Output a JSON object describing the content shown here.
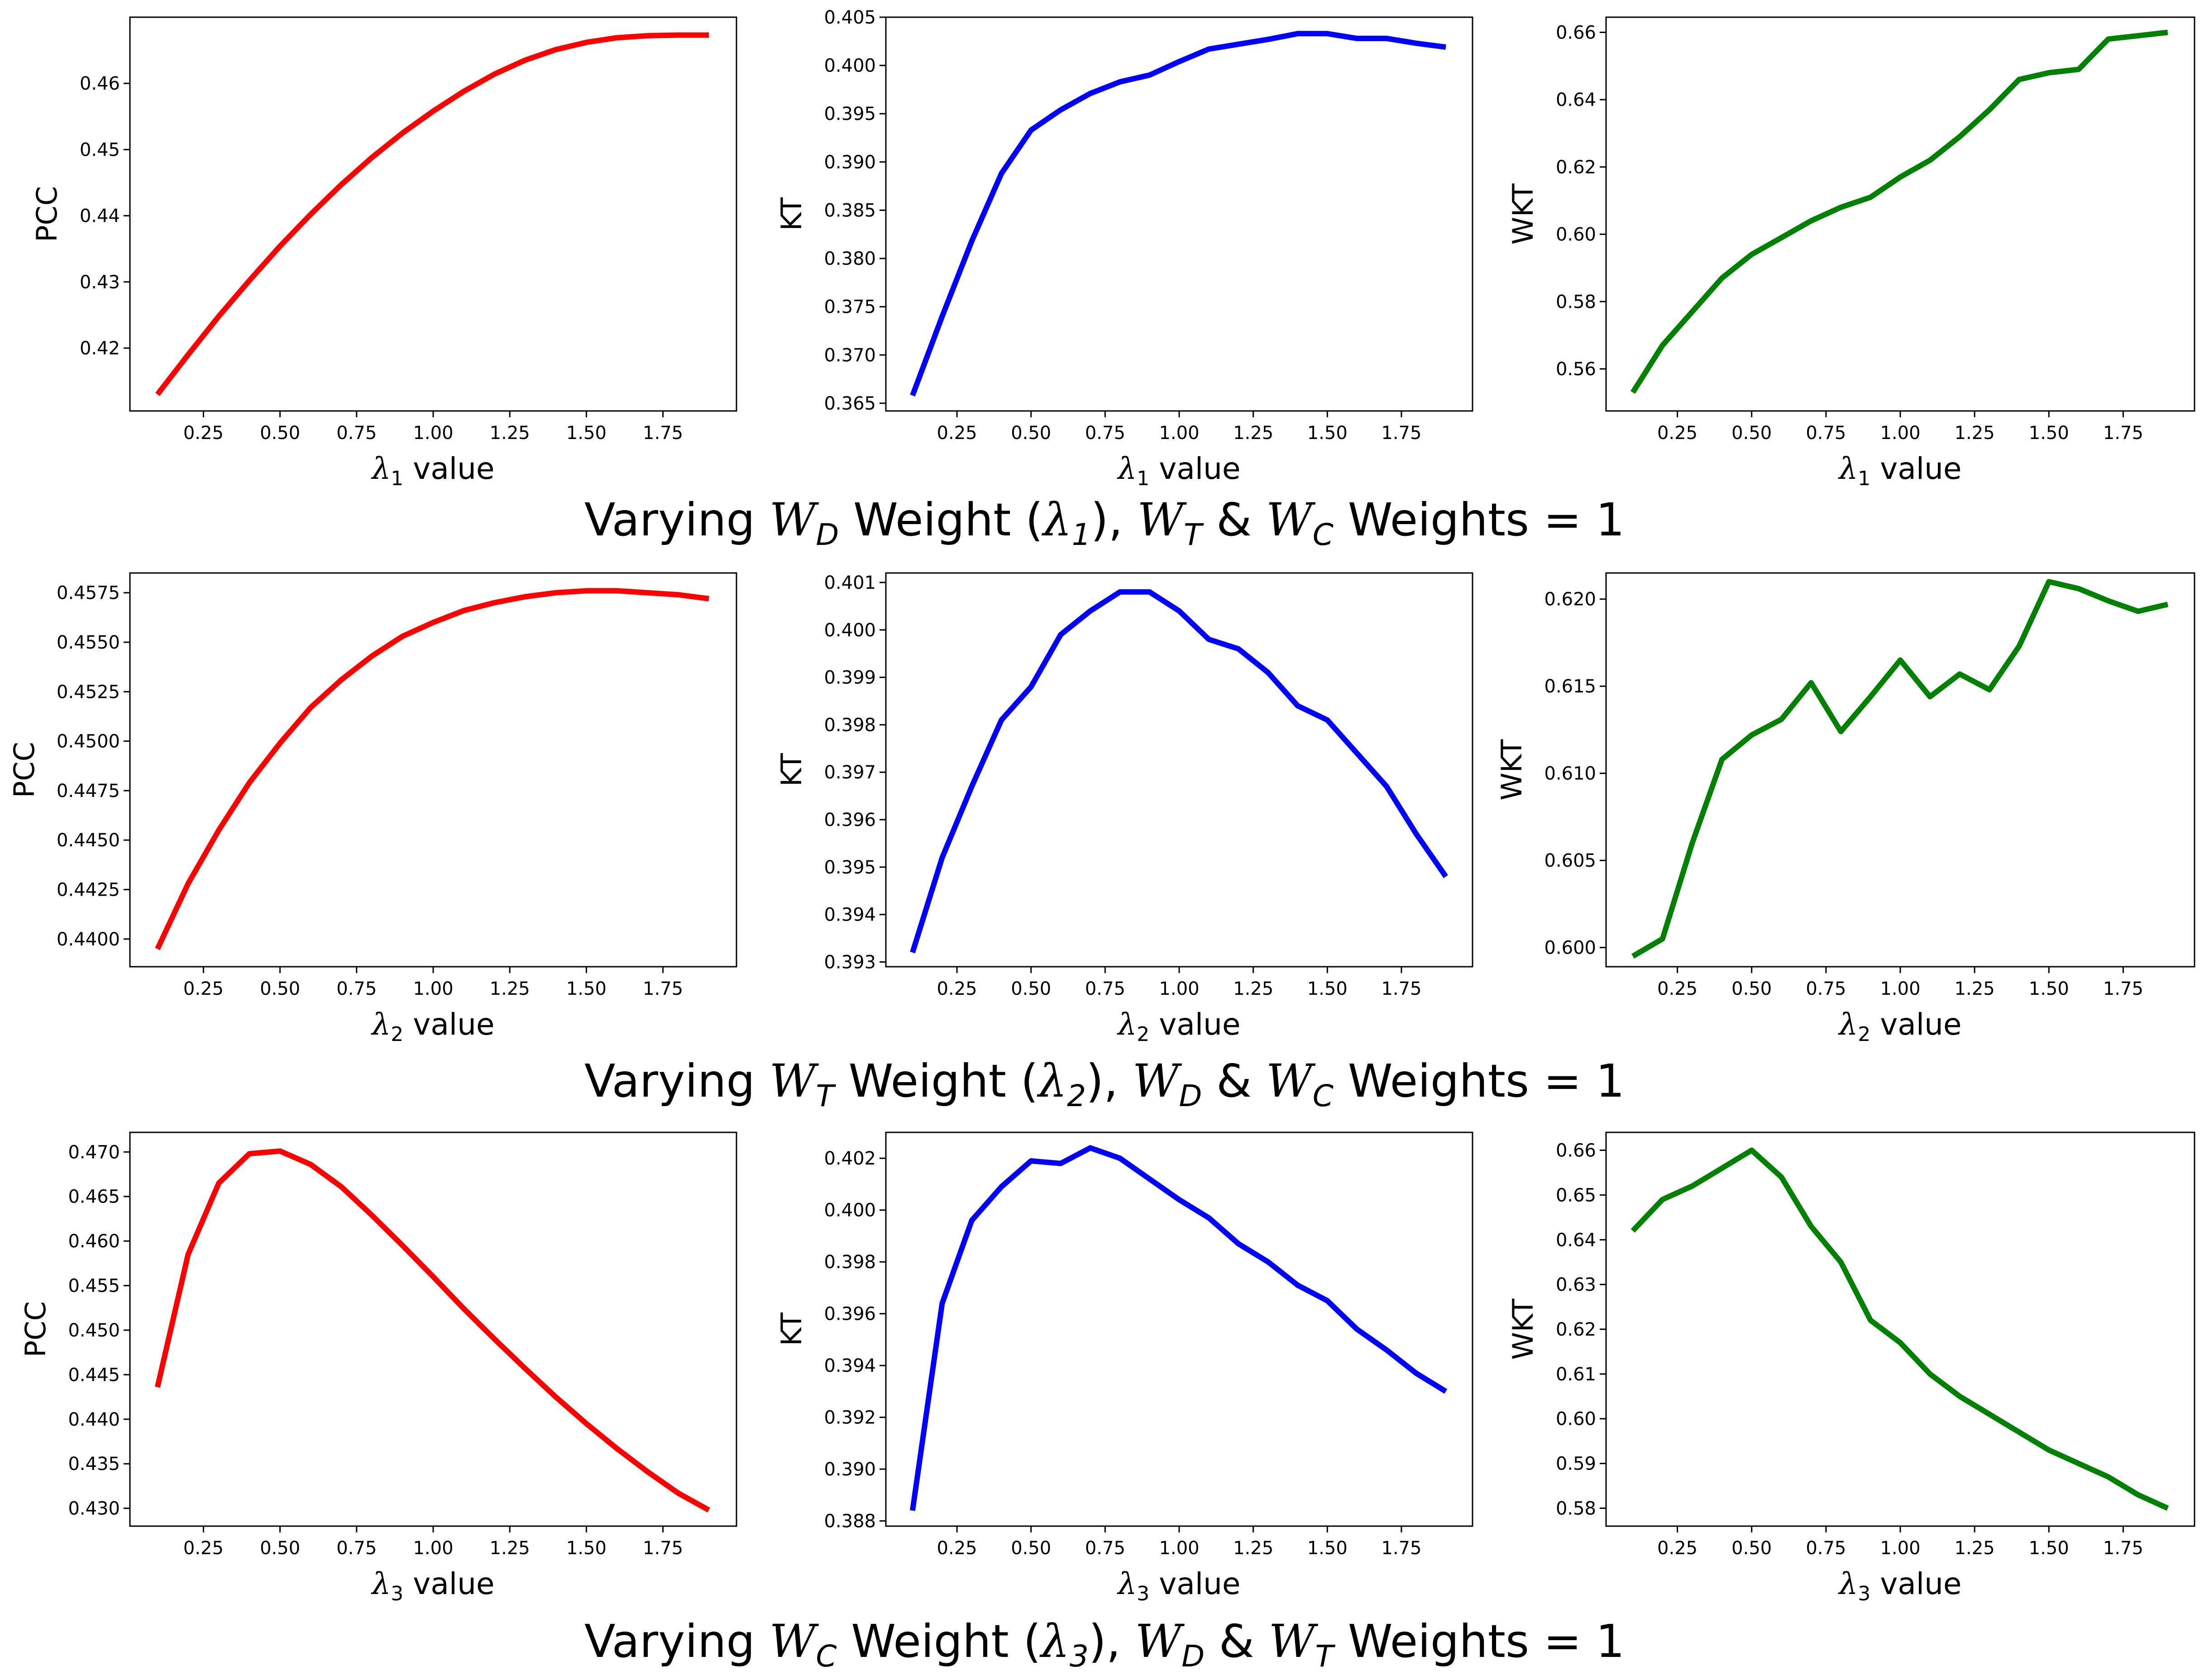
{
  "colors": {
    "pcc": "#ff0000",
    "kt": "#0000ff",
    "wkt": "#008000"
  },
  "rows": [
    {
      "title": {
        "prefix": "Varying ",
        "var": "W",
        "var_sub": "D",
        "mid": " Weight (",
        "lambda": "λ",
        "lambda_sub": "1",
        "mid2": "), ",
        "w2": "W",
        "w2_sub": "T",
        "amp": " & ",
        "w3": "W",
        "w3_sub": "C",
        "suffix": " Weights = 1"
      }
    },
    {
      "title": {
        "prefix": "Varying ",
        "var": "W",
        "var_sub": "T",
        "mid": " Weight (",
        "lambda": "λ",
        "lambda_sub": "2",
        "mid2": "), ",
        "w2": "W",
        "w2_sub": "D",
        "amp": " & ",
        "w3": "W",
        "w3_sub": "C",
        "suffix": " Weights = 1"
      }
    },
    {
      "title": {
        "prefix": "Varying ",
        "var": "W",
        "var_sub": "C",
        "mid": " Weight (",
        "lambda": "λ",
        "lambda_sub": "3",
        "mid2": "), ",
        "w2": "W",
        "w2_sub": "D",
        "amp": " & ",
        "w3": "W",
        "w3_sub": "T",
        "suffix": " Weights = 1"
      }
    }
  ],
  "chart_data": [
    {
      "type": "line",
      "ylabel": "PCC",
      "xlabel": "λ1 value",
      "xlabel_sym": "λ",
      "xlabel_sub": "1",
      "xlabel_rest": " value",
      "color": "#ff0000",
      "x": [
        0.1,
        0.2,
        0.3,
        0.4,
        0.5,
        0.6,
        0.7,
        0.8,
        0.9,
        1.0,
        1.1,
        1.2,
        1.3,
        1.4,
        1.5,
        1.6,
        1.7,
        1.8,
        1.9
      ],
      "y": [
        0.413,
        0.419,
        0.4248,
        0.4302,
        0.4354,
        0.4402,
        0.4447,
        0.4488,
        0.4525,
        0.4558,
        0.4588,
        0.4614,
        0.4635,
        0.4651,
        0.4662,
        0.4669,
        0.4672,
        0.4673,
        0.4673
      ],
      "xlim": [
        0.01,
        1.99
      ],
      "ylim": [
        0.4105,
        0.47
      ],
      "xticks": [
        0.25,
        0.5,
        0.75,
        1.0,
        1.25,
        1.5,
        1.75
      ],
      "xtick_labels": [
        "0.25",
        "0.50",
        "0.75",
        "1.00",
        "1.25",
        "1.50",
        "1.75"
      ],
      "yticks": [
        0.42,
        0.43,
        0.44,
        0.45,
        0.46
      ],
      "ytick_labels": [
        "0.42",
        "0.43",
        "0.44",
        "0.45",
        "0.46"
      ]
    },
    {
      "type": "line",
      "ylabel": "KT",
      "xlabel": "λ1 value",
      "xlabel_sym": "λ",
      "xlabel_sub": "1",
      "xlabel_rest": " value",
      "color": "#0000ff",
      "x": [
        0.1,
        0.2,
        0.3,
        0.4,
        0.5,
        0.6,
        0.7,
        0.8,
        0.9,
        1.0,
        1.1,
        1.2,
        1.3,
        1.4,
        1.5,
        1.6,
        1.7,
        1.8,
        1.9
      ],
      "y": [
        0.3658,
        0.374,
        0.3818,
        0.3888,
        0.3933,
        0.3954,
        0.3971,
        0.3983,
        0.399,
        0.4004,
        0.4017,
        0.4022,
        0.4027,
        0.4033,
        0.4033,
        0.4028,
        0.4028,
        0.4023,
        0.4019
      ],
      "xlim": [
        0.01,
        1.99
      ],
      "ylim": [
        0.3642,
        0.405
      ],
      "xticks": [
        0.25,
        0.5,
        0.75,
        1.0,
        1.25,
        1.5,
        1.75
      ],
      "xtick_labels": [
        "0.25",
        "0.50",
        "0.75",
        "1.00",
        "1.25",
        "1.50",
        "1.75"
      ],
      "yticks": [
        0.365,
        0.37,
        0.375,
        0.38,
        0.385,
        0.39,
        0.395,
        0.4,
        0.405
      ],
      "ytick_labels": [
        "0.365",
        "0.370",
        "0.375",
        "0.380",
        "0.385",
        "0.390",
        "0.395",
        "0.400",
        "0.405"
      ]
    },
    {
      "type": "line",
      "ylabel": "WKT",
      "xlabel": "λ1 value",
      "xlabel_sym": "λ",
      "xlabel_sub": "1",
      "xlabel_rest": " value",
      "color": "#008000",
      "x": [
        0.1,
        0.2,
        0.3,
        0.4,
        0.5,
        0.6,
        0.7,
        0.8,
        0.9,
        1.0,
        1.1,
        1.2,
        1.3,
        1.4,
        1.5,
        1.6,
        1.7,
        1.8,
        1.9
      ],
      "y": [
        0.553,
        0.567,
        0.577,
        0.587,
        0.594,
        0.599,
        0.604,
        0.608,
        0.611,
        0.617,
        0.622,
        0.629,
        0.637,
        0.646,
        0.648,
        0.649,
        0.658,
        0.659,
        0.66
      ],
      "xlim": [
        0.01,
        1.99
      ],
      "ylim": [
        0.5475,
        0.6645
      ],
      "xticks": [
        0.25,
        0.5,
        0.75,
        1.0,
        1.25,
        1.5,
        1.75
      ],
      "xtick_labels": [
        "0.25",
        "0.50",
        "0.75",
        "1.00",
        "1.25",
        "1.50",
        "1.75"
      ],
      "yticks": [
        0.56,
        0.58,
        0.6,
        0.62,
        0.64,
        0.66
      ],
      "ytick_labels": [
        "0.56",
        "0.58",
        "0.60",
        "0.62",
        "0.64",
        "0.66"
      ]
    },
    {
      "type": "line",
      "ylabel": "PCC",
      "xlabel": "λ2 value",
      "xlabel_sym": "λ",
      "xlabel_sub": "2",
      "xlabel_rest": " value",
      "color": "#ff0000",
      "x": [
        0.1,
        0.2,
        0.3,
        0.4,
        0.5,
        0.6,
        0.7,
        0.8,
        0.9,
        1.0,
        1.1,
        1.2,
        1.3,
        1.4,
        1.5,
        1.6,
        1.7,
        1.8,
        1.9
      ],
      "y": [
        0.4395,
        0.4428,
        0.4455,
        0.4479,
        0.4499,
        0.4517,
        0.4531,
        0.4543,
        0.4553,
        0.456,
        0.4566,
        0.457,
        0.4573,
        0.4575,
        0.4576,
        0.4576,
        0.4575,
        0.4574,
        0.4572
      ],
      "xlim": [
        0.01,
        1.99
      ],
      "ylim": [
        0.4386,
        0.4585
      ],
      "xticks": [
        0.25,
        0.5,
        0.75,
        1.0,
        1.25,
        1.5,
        1.75
      ],
      "xtick_labels": [
        "0.25",
        "0.50",
        "0.75",
        "1.00",
        "1.25",
        "1.50",
        "1.75"
      ],
      "yticks": [
        0.44,
        0.4425,
        0.445,
        0.4475,
        0.45,
        0.4525,
        0.455,
        0.4575
      ],
      "ytick_labels": [
        "0.4400",
        "0.4425",
        "0.4450",
        "0.4475",
        "0.4500",
        "0.4525",
        "0.4550",
        "0.4575"
      ]
    },
    {
      "type": "line",
      "ylabel": "KT",
      "xlabel": "λ2 value",
      "xlabel_sym": "λ",
      "xlabel_sub": "2",
      "xlabel_rest": " value",
      "color": "#0000ff",
      "x": [
        0.1,
        0.2,
        0.3,
        0.4,
        0.5,
        0.6,
        0.7,
        0.8,
        0.9,
        1.0,
        1.1,
        1.2,
        1.3,
        1.4,
        1.5,
        1.6,
        1.7,
        1.8,
        1.9
      ],
      "y": [
        0.3932,
        0.3952,
        0.3967,
        0.3981,
        0.3988,
        0.3999,
        0.4004,
        0.4008,
        0.4008,
        0.4004,
        0.3998,
        0.3996,
        0.3991,
        0.3984,
        0.3981,
        0.3974,
        0.3967,
        0.3957,
        0.3948
      ],
      "xlim": [
        0.01,
        1.99
      ],
      "ylim": [
        0.3929,
        0.4012
      ],
      "xticks": [
        0.25,
        0.5,
        0.75,
        1.0,
        1.25,
        1.5,
        1.75
      ],
      "xtick_labels": [
        "0.25",
        "0.50",
        "0.75",
        "1.00",
        "1.25",
        "1.50",
        "1.75"
      ],
      "yticks": [
        0.393,
        0.394,
        0.395,
        0.396,
        0.397,
        0.398,
        0.399,
        0.4,
        0.401
      ],
      "ytick_labels": [
        "0.393",
        "0.394",
        "0.395",
        "0.396",
        "0.397",
        "0.398",
        "0.399",
        "0.400",
        "0.401"
      ]
    },
    {
      "type": "line",
      "ylabel": "WKT",
      "xlabel": "λ2 value",
      "xlabel_sym": "λ",
      "xlabel_sub": "2",
      "xlabel_rest": " value",
      "color": "#008000",
      "x": [
        0.1,
        0.2,
        0.3,
        0.4,
        0.5,
        0.6,
        0.7,
        0.8,
        0.9,
        1.0,
        1.1,
        1.2,
        1.3,
        1.4,
        1.5,
        1.6,
        1.7,
        1.8,
        1.9
      ],
      "y": [
        0.5995,
        0.6005,
        0.606,
        0.6108,
        0.6122,
        0.6131,
        0.6152,
        0.6124,
        0.6144,
        0.6165,
        0.6144,
        0.6157,
        0.6148,
        0.6173,
        0.621,
        0.6206,
        0.6199,
        0.6193,
        0.6197
      ],
      "xlim": [
        0.01,
        1.99
      ],
      "ylim": [
        0.5989,
        0.6215
      ],
      "xticks": [
        0.25,
        0.5,
        0.75,
        1.0,
        1.25,
        1.5,
        1.75
      ],
      "xtick_labels": [
        "0.25",
        "0.50",
        "0.75",
        "1.00",
        "1.25",
        "1.50",
        "1.75"
      ],
      "yticks": [
        0.6,
        0.605,
        0.61,
        0.615,
        0.62
      ],
      "ytick_labels": [
        "0.600",
        "0.605",
        "0.610",
        "0.615",
        "0.620"
      ]
    },
    {
      "type": "line",
      "ylabel": "PCC",
      "xlabel": "λ3 value",
      "xlabel_sym": "λ",
      "xlabel_sub": "3",
      "xlabel_rest": " value",
      "color": "#ff0000",
      "x": [
        0.1,
        0.2,
        0.3,
        0.4,
        0.5,
        0.6,
        0.7,
        0.8,
        0.9,
        1.0,
        1.1,
        1.2,
        1.3,
        1.4,
        1.5,
        1.6,
        1.7,
        1.8,
        1.9
      ],
      "y": [
        0.4436,
        0.4585,
        0.4665,
        0.4698,
        0.4701,
        0.4686,
        0.4661,
        0.4629,
        0.4595,
        0.456,
        0.4524,
        0.449,
        0.4457,
        0.4425,
        0.4395,
        0.4367,
        0.4341,
        0.4317,
        0.4298
      ],
      "xlim": [
        0.01,
        1.99
      ],
      "ylim": [
        0.428,
        0.4722
      ],
      "xticks": [
        0.25,
        0.5,
        0.75,
        1.0,
        1.25,
        1.5,
        1.75
      ],
      "xtick_labels": [
        "0.25",
        "0.50",
        "0.75",
        "1.00",
        "1.25",
        "1.50",
        "1.75"
      ],
      "yticks": [
        0.43,
        0.435,
        0.44,
        0.445,
        0.45,
        0.455,
        0.46,
        0.465,
        0.47
      ],
      "ytick_labels": [
        "0.430",
        "0.435",
        "0.440",
        "0.445",
        "0.450",
        "0.455",
        "0.460",
        "0.465",
        "0.470"
      ]
    },
    {
      "type": "line",
      "ylabel": "KT",
      "xlabel": "λ3 value",
      "xlabel_sym": "λ",
      "xlabel_sub": "3",
      "xlabel_rest": " value",
      "color": "#0000ff",
      "x": [
        0.1,
        0.2,
        0.3,
        0.4,
        0.5,
        0.6,
        0.7,
        0.8,
        0.9,
        1.0,
        1.1,
        1.2,
        1.3,
        1.4,
        1.5,
        1.6,
        1.7,
        1.8,
        1.9
      ],
      "y": [
        0.3884,
        0.3964,
        0.3996,
        0.4009,
        0.4019,
        0.4018,
        0.4024,
        0.402,
        0.4012,
        0.4004,
        0.3997,
        0.3987,
        0.398,
        0.3971,
        0.3965,
        0.3954,
        0.3946,
        0.3937,
        0.393
      ],
      "xlim": [
        0.01,
        1.99
      ],
      "ylim": [
        0.3878,
        0.403
      ],
      "xticks": [
        0.25,
        0.5,
        0.75,
        1.0,
        1.25,
        1.5,
        1.75
      ],
      "xtick_labels": [
        "0.25",
        "0.50",
        "0.75",
        "1.00",
        "1.25",
        "1.50",
        "1.75"
      ],
      "yticks": [
        0.388,
        0.39,
        0.392,
        0.394,
        0.396,
        0.398,
        0.4,
        0.402
      ],
      "ytick_labels": [
        "0.388",
        "0.390",
        "0.392",
        "0.394",
        "0.396",
        "0.398",
        "0.400",
        "0.402"
      ]
    },
    {
      "type": "line",
      "ylabel": "WKT",
      "xlabel": "λ3 value",
      "xlabel_sym": "λ",
      "xlabel_sub": "3",
      "xlabel_rest": " value",
      "color": "#008000",
      "x": [
        0.1,
        0.2,
        0.3,
        0.4,
        0.5,
        0.6,
        0.7,
        0.8,
        0.9,
        1.0,
        1.1,
        1.2,
        1.3,
        1.4,
        1.5,
        1.6,
        1.7,
        1.8,
        1.9
      ],
      "y": [
        0.642,
        0.649,
        0.652,
        0.656,
        0.66,
        0.654,
        0.643,
        0.635,
        0.622,
        0.617,
        0.61,
        0.605,
        0.601,
        0.597,
        0.593,
        0.59,
        0.587,
        0.583,
        0.58
      ],
      "xlim": [
        0.01,
        1.99
      ],
      "ylim": [
        0.576,
        0.664
      ],
      "xticks": [
        0.25,
        0.5,
        0.75,
        1.0,
        1.25,
        1.5,
        1.75
      ],
      "xtick_labels": [
        "0.25",
        "0.50",
        "0.75",
        "1.00",
        "1.25",
        "1.50",
        "1.75"
      ],
      "yticks": [
        0.58,
        0.59,
        0.6,
        0.61,
        0.62,
        0.63,
        0.64,
        0.65,
        0.66
      ],
      "ytick_labels": [
        "0.58",
        "0.59",
        "0.60",
        "0.61",
        "0.62",
        "0.63",
        "0.64",
        "0.65",
        "0.66"
      ]
    }
  ]
}
